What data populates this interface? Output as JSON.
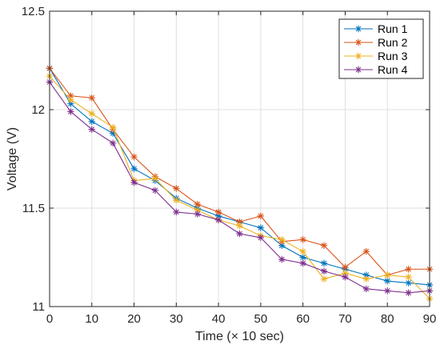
{
  "chart_data": {
    "type": "line",
    "title": "",
    "xlabel": "Time (× 10 sec)",
    "ylabel": "Voltage (V)",
    "xlim": [
      0,
      90
    ],
    "ylim": [
      11,
      12.5
    ],
    "xticks": [
      0,
      10,
      20,
      30,
      40,
      50,
      60,
      70,
      80,
      90
    ],
    "yticks": [
      11,
      11.5,
      12,
      12.5
    ],
    "ytick_labels": [
      "11",
      "11.5",
      "12",
      "12.5"
    ],
    "grid": true,
    "legend_position": "top-right",
    "marker": "asterisk",
    "x": [
      0,
      5,
      10,
      15,
      20,
      25,
      30,
      35,
      40,
      45,
      50,
      55,
      60,
      65,
      70,
      75,
      80,
      85,
      90
    ],
    "series": [
      {
        "name": "Run 1",
        "color": "#0072BD",
        "values": [
          12.21,
          12.03,
          11.94,
          11.88,
          11.7,
          11.64,
          11.55,
          11.5,
          11.46,
          11.43,
          11.4,
          11.31,
          11.25,
          11.22,
          11.19,
          11.16,
          11.13,
          11.12,
          11.11
        ]
      },
      {
        "name": "Run 2",
        "color": "#D95319",
        "values": [
          12.21,
          12.07,
          12.06,
          11.9,
          11.76,
          11.66,
          11.6,
          11.52,
          11.48,
          11.43,
          11.46,
          11.33,
          11.34,
          11.31,
          11.2,
          11.28,
          11.16,
          11.19,
          11.19
        ]
      },
      {
        "name": "Run 3",
        "color": "#EDB120",
        "values": [
          12.17,
          12.05,
          11.98,
          11.91,
          11.64,
          11.65,
          11.54,
          11.49,
          11.44,
          11.41,
          11.36,
          11.34,
          11.28,
          11.14,
          11.17,
          11.14,
          11.16,
          11.15,
          11.04
        ]
      },
      {
        "name": "Run 4",
        "color": "#7E2F8E",
        "values": [
          12.14,
          11.99,
          11.9,
          11.83,
          11.63,
          11.59,
          11.48,
          11.47,
          11.44,
          11.37,
          11.35,
          11.24,
          11.22,
          11.18,
          11.15,
          11.09,
          11.08,
          11.07,
          11.08
        ]
      }
    ]
  }
}
